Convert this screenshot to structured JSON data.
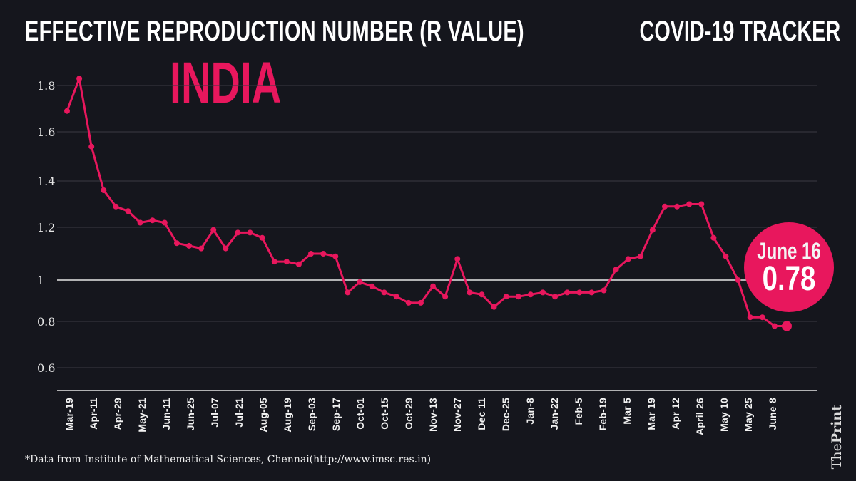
{
  "header": {
    "title": "EFFECTIVE REPRODUCTION NUMBER (R VALUE)",
    "tracker": "COVID-19 TRACKER",
    "country": "INDIA"
  },
  "callout": {
    "date": "June 16",
    "value": "0.78"
  },
  "source": "*Data from Institute of Mathematical Sciences, Chennai(http://www.imsc.res.in)",
  "brand": {
    "the": "The",
    "print": "Print"
  },
  "colors": {
    "line": "#e8175d",
    "background": "#15161d",
    "grid": "#3a3b44",
    "reference": "#e6e6e6"
  },
  "chart_data": {
    "type": "line",
    "title": "EFFECTIVE REPRODUCTION NUMBER (R VALUE) - INDIA",
    "xlabel": "",
    "ylabel": "R value",
    "yticks": [
      0.6,
      0.8,
      1,
      1.2,
      1.4,
      1.6,
      1.8
    ],
    "ytick_labels": [
      "0.6",
      "0.8",
      "1",
      "1.2",
      "1.4",
      "1.6",
      "1.8"
    ],
    "reference_line": 1,
    "x_tick_labels": [
      "Mar-19",
      "Apr-11",
      "Apr-29",
      "May-21",
      "Jun-11",
      "Jun-25",
      "Jul-07",
      "Jul-21",
      "Aug-05",
      "Aug-19",
      "Sep-03",
      "Sep-17",
      "Oct-01",
      "Oct-15",
      "Oct-29",
      "Nov-13",
      "Nov-27",
      "Dec 11",
      "Dec-25",
      "Jan-8",
      "Jan-22",
      "Feb-5",
      "Feb-19",
      "Mar 5",
      "Mar 19",
      "Apr 12",
      "April 26",
      "May 10",
      "May 25",
      "June 8"
    ],
    "series": [
      {
        "name": "R value",
        "values": [
          1.69,
          1.83,
          1.54,
          1.36,
          1.29,
          1.27,
          1.22,
          1.23,
          1.22,
          1.14,
          1.13,
          1.12,
          1.19,
          1.12,
          1.18,
          1.18,
          1.16,
          1.07,
          1.07,
          1.06,
          1.1,
          1.1,
          1.09,
          0.94,
          0.99,
          0.97,
          0.94,
          0.92,
          0.89,
          0.89,
          0.97,
          0.92,
          1.08,
          0.94,
          0.93,
          0.87,
          0.92,
          0.92,
          0.93,
          0.94,
          0.92,
          0.94,
          0.94,
          0.94,
          0.95,
          1.04,
          1.08,
          1.09,
          1.19,
          1.29,
          1.29,
          1.3,
          1.3,
          1.16,
          1.09,
          1.0,
          0.82,
          0.82,
          0.78,
          0.78
        ]
      }
    ],
    "grid": true,
    "legend": "none"
  }
}
